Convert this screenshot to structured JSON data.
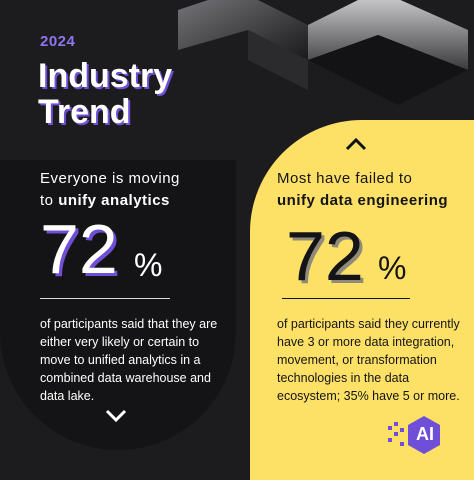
{
  "header": {
    "year": "2024",
    "title_line1": "Industry",
    "title_line2": "Trend"
  },
  "left": {
    "heading_line1": "Everyone is moving",
    "heading_prefix": "to ",
    "heading_bold": "unify analytics",
    "stat_value": "72",
    "stat_unit": "%",
    "description": "of participants said that they are either very likely or certain to move to unified analytics in a combined data warehouse and data lake."
  },
  "right": {
    "heading_line1": "Most have failed to",
    "heading_bold": "unify data engineering",
    "stat_value": "72",
    "stat_unit": "%",
    "description": "of participants said they currently have 3 or more data integration, movement, or transformation technologies in the data ecosystem; 35% have 5 or more."
  },
  "logo": {
    "text": "AI",
    "icon": "ai-hexagon-icon"
  },
  "colors": {
    "background": "#1c1c1e",
    "accent_purple": "#6f4fd8",
    "accent_yellow": "#fde167"
  }
}
